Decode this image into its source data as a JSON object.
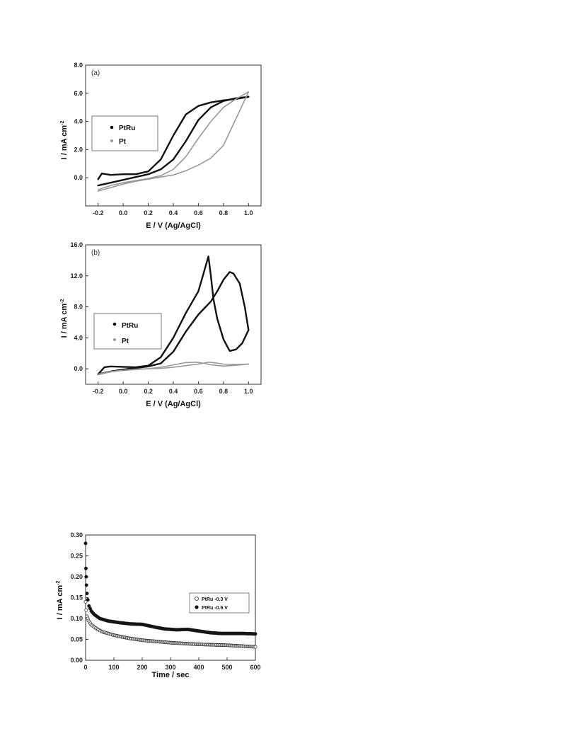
{
  "chart_data": [
    {
      "type": "line",
      "panel_label": "(a)",
      "xlabel": "E / V (Ag/AgCl)",
      "ylabel": "I / mA cm",
      "ylabel_sup": "-2",
      "xlim": [
        -0.3,
        1.1
      ],
      "ylim": [
        -2.0,
        8.0
      ],
      "xticks": [
        "-0.2",
        "0.0",
        "0.2",
        "0.4",
        "0.6",
        "0.8",
        "1.0"
      ],
      "yticks": [
        "0.0",
        "2.0",
        "4.0",
        "6.0",
        "8.0"
      ],
      "xtick_values": [
        -0.2,
        0.0,
        0.2,
        0.4,
        0.6,
        0.8,
        1.0
      ],
      "ytick_values": [
        0.0,
        2.0,
        4.0,
        6.0,
        8.0
      ],
      "legend": "left",
      "series": [
        {
          "name": "PtRu",
          "color": "#111111",
          "forward": [
            [
              -0.2,
              -0.55
            ],
            [
              -0.1,
              -0.35
            ],
            [
              0.0,
              -0.15
            ],
            [
              0.1,
              0.05
            ],
            [
              0.2,
              0.25
            ],
            [
              0.3,
              0.6
            ],
            [
              0.4,
              1.3
            ],
            [
              0.5,
              2.6
            ],
            [
              0.6,
              4.1
            ],
            [
              0.7,
              5.0
            ],
            [
              0.8,
              5.45
            ],
            [
              0.9,
              5.65
            ],
            [
              1.0,
              5.75
            ]
          ],
          "backward": [
            [
              1.0,
              5.75
            ],
            [
              0.9,
              5.6
            ],
            [
              0.8,
              5.5
            ],
            [
              0.7,
              5.35
            ],
            [
              0.6,
              5.1
            ],
            [
              0.5,
              4.5
            ],
            [
              0.4,
              3.0
            ],
            [
              0.3,
              1.3
            ],
            [
              0.2,
              0.45
            ],
            [
              0.1,
              0.25
            ],
            [
              0.0,
              0.25
            ],
            [
              -0.1,
              0.2
            ],
            [
              -0.17,
              0.3
            ],
            [
              -0.2,
              -0.1
            ]
          ]
        },
        {
          "name": "Pt",
          "color": "#999999",
          "forward": [
            [
              -0.2,
              -0.95
            ],
            [
              -0.1,
              -0.7
            ],
            [
              0.0,
              -0.45
            ],
            [
              0.1,
              -0.25
            ],
            [
              0.2,
              -0.1
            ],
            [
              0.3,
              0.05
            ],
            [
              0.4,
              0.2
            ],
            [
              0.5,
              0.5
            ],
            [
              0.6,
              0.9
            ],
            [
              0.7,
              1.4
            ],
            [
              0.8,
              2.3
            ],
            [
              0.9,
              4.2
            ],
            [
              1.0,
              6.1
            ]
          ],
          "backward": [
            [
              1.0,
              6.1
            ],
            [
              0.9,
              5.6
            ],
            [
              0.8,
              5.0
            ],
            [
              0.7,
              4.0
            ],
            [
              0.6,
              2.8
            ],
            [
              0.5,
              1.5
            ],
            [
              0.4,
              0.6
            ],
            [
              0.3,
              0.15
            ],
            [
              0.2,
              -0.05
            ],
            [
              0.1,
              -0.2
            ],
            [
              0.0,
              -0.35
            ],
            [
              -0.1,
              -0.55
            ],
            [
              -0.2,
              -0.85
            ]
          ]
        }
      ]
    },
    {
      "type": "line",
      "panel_label": "(b)",
      "xlabel": "E / V (Ag/AgCl)",
      "ylabel": "I / mA cm",
      "ylabel_sup": "-2",
      "xlim": [
        -0.3,
        1.1
      ],
      "ylim": [
        -2.0,
        16.0
      ],
      "xticks": [
        "-0.2",
        "0.0",
        "0.2",
        "0.4",
        "0.6",
        "0.8",
        "1.0"
      ],
      "yticks": [
        "0.0",
        "4.0",
        "8.0",
        "12.0",
        "16.0"
      ],
      "xtick_values": [
        -0.2,
        0.0,
        0.2,
        0.4,
        0.6,
        0.8,
        1.0
      ],
      "ytick_values": [
        0.0,
        4.0,
        8.0,
        12.0,
        16.0
      ],
      "legend": "left",
      "series": [
        {
          "name": "PtRu",
          "color": "#111111",
          "forward": [
            [
              -0.2,
              -0.7
            ],
            [
              -0.15,
              0.2
            ],
            [
              -0.1,
              0.3
            ],
            [
              0.0,
              0.25
            ],
            [
              0.1,
              0.2
            ],
            [
              0.2,
              0.4
            ],
            [
              0.3,
              1.5
            ],
            [
              0.4,
              4.0
            ],
            [
              0.5,
              7.2
            ],
            [
              0.6,
              10.0
            ],
            [
              0.68,
              14.5
            ],
            [
              0.7,
              12.0
            ],
            [
              0.72,
              9.0
            ],
            [
              0.75,
              6.5
            ],
            [
              0.8,
              3.8
            ],
            [
              0.85,
              2.3
            ],
            [
              0.9,
              2.5
            ],
            [
              0.95,
              3.3
            ],
            [
              1.0,
              5.0
            ]
          ],
          "backward": [
            [
              1.0,
              5.0
            ],
            [
              0.97,
              8.0
            ],
            [
              0.93,
              11.0
            ],
            [
              0.88,
              12.3
            ],
            [
              0.85,
              12.5
            ],
            [
              0.8,
              11.5
            ],
            [
              0.75,
              10.0
            ],
            [
              0.7,
              8.7
            ],
            [
              0.6,
              7.0
            ],
            [
              0.5,
              4.8
            ],
            [
              0.4,
              2.2
            ],
            [
              0.3,
              0.7
            ],
            [
              0.2,
              0.3
            ],
            [
              0.1,
              0.1
            ],
            [
              0.0,
              -0.1
            ],
            [
              -0.1,
              -0.35
            ],
            [
              -0.2,
              -0.7
            ]
          ]
        },
        {
          "name": "Pt",
          "color": "#999999",
          "forward": [
            [
              -0.2,
              -0.7
            ],
            [
              -0.1,
              -0.35
            ],
            [
              0.0,
              -0.2
            ],
            [
              0.1,
              -0.1
            ],
            [
              0.2,
              0.0
            ],
            [
              0.3,
              0.2
            ],
            [
              0.4,
              0.5
            ],
            [
              0.5,
              0.8
            ],
            [
              0.58,
              0.85
            ],
            [
              0.65,
              0.7
            ],
            [
              0.7,
              0.5
            ],
            [
              0.8,
              0.35
            ],
            [
              0.9,
              0.45
            ],
            [
              1.0,
              0.6
            ]
          ],
          "backward": [
            [
              1.0,
              0.6
            ],
            [
              0.9,
              0.55
            ],
            [
              0.8,
              0.6
            ],
            [
              0.72,
              0.8
            ],
            [
              0.68,
              0.85
            ],
            [
              0.6,
              0.6
            ],
            [
              0.5,
              0.4
            ],
            [
              0.4,
              0.2
            ],
            [
              0.3,
              0.05
            ],
            [
              0.2,
              0.0
            ],
            [
              0.1,
              -0.05
            ],
            [
              0.0,
              -0.2
            ],
            [
              -0.1,
              -0.4
            ],
            [
              -0.2,
              -0.7
            ]
          ]
        }
      ]
    },
    {
      "type": "scatter",
      "xlabel": "Time / sec",
      "ylabel": "I / mA cm",
      "ylabel_sup": "-2",
      "xlim": [
        0,
        600
      ],
      "ylim": [
        0.0,
        0.3
      ],
      "xticks": [
        "0",
        "100",
        "200",
        "300",
        "400",
        "500",
        "600"
      ],
      "yticks": [
        "0.00",
        "0.05",
        "0.10",
        "0.15",
        "0.20",
        "0.25",
        "0.30"
      ],
      "xtick_values": [
        0,
        100,
        200,
        300,
        400,
        500,
        600
      ],
      "ytick_values": [
        0.0,
        0.05,
        0.1,
        0.15,
        0.2,
        0.25,
        0.3
      ],
      "legend": "right",
      "series": [
        {
          "name": "PtRu -0.3 V",
          "marker": "open",
          "points": [
            [
              0,
              0.14
            ],
            [
              2,
              0.12
            ],
            [
              5,
              0.105
            ],
            [
              10,
              0.095
            ],
            [
              20,
              0.085
            ],
            [
              40,
              0.075
            ],
            [
              60,
              0.068
            ],
            [
              100,
              0.06
            ],
            [
              150,
              0.053
            ],
            [
              200,
              0.048
            ],
            [
              250,
              0.045
            ],
            [
              300,
              0.042
            ],
            [
              350,
              0.04
            ],
            [
              400,
              0.038
            ],
            [
              450,
              0.037
            ],
            [
              500,
              0.036
            ],
            [
              550,
              0.034
            ],
            [
              600,
              0.032
            ]
          ]
        },
        {
          "name": "PtRu -0.6 V",
          "marker": "filled",
          "points": [
            [
              0,
              0.28
            ],
            [
              1,
              0.22
            ],
            [
              2,
              0.2
            ],
            [
              3,
              0.18
            ],
            [
              5,
              0.16
            ],
            [
              8,
              0.145
            ],
            [
              12,
              0.13
            ],
            [
              20,
              0.118
            ],
            [
              30,
              0.11
            ],
            [
              50,
              0.1
            ],
            [
              80,
              0.094
            ],
            [
              120,
              0.09
            ],
            [
              160,
              0.087
            ],
            [
              200,
              0.086
            ],
            [
              240,
              0.08
            ],
            [
              280,
              0.075
            ],
            [
              320,
              0.073
            ],
            [
              360,
              0.074
            ],
            [
              400,
              0.07
            ],
            [
              440,
              0.066
            ],
            [
              480,
              0.064
            ],
            [
              520,
              0.064
            ],
            [
              560,
              0.064
            ],
            [
              600,
              0.063
            ]
          ]
        }
      ]
    }
  ]
}
